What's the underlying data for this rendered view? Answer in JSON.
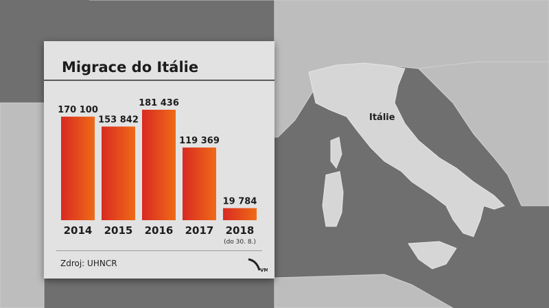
{
  "map": {
    "label": "Itálie"
  },
  "chart_data": {
    "type": "bar",
    "title": "Migrace do Itálie",
    "categories": [
      "2014",
      "2015",
      "2016",
      "2017",
      "2018"
    ],
    "values": [
      170100,
      153842,
      181436,
      119369,
      19784
    ],
    "value_labels": [
      "170 100",
      "153 842",
      "181 436",
      "119 369",
      "19 784"
    ],
    "category_notes": [
      "",
      "",
      "",
      "",
      "(do 30. 8.)"
    ],
    "ylim": [
      0,
      181436
    ],
    "grid": false,
    "colors": {
      "start": "#d92a22",
      "end": "#ef6b16"
    },
    "source": "Zdroj: UHNCR"
  },
  "logo": {
    "text": "VM"
  }
}
